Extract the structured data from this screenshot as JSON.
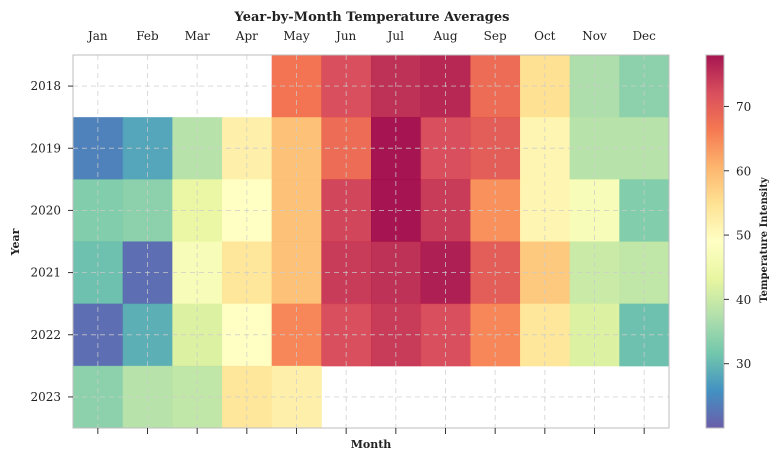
{
  "chart_data": {
    "type": "heatmap",
    "title": "Year-by-Month Temperature Averages",
    "xlabel": "Month",
    "ylabel": "Year",
    "colorbar_label": "Temperature Intensity",
    "colormap": "Spectral_r",
    "colorbar_range": [
      20,
      78
    ],
    "colorbar_ticks": [
      30,
      40,
      50,
      60,
      70
    ],
    "grid": true,
    "x_tick_position": "top",
    "columns": [
      "Jan",
      "Feb",
      "Mar",
      "Apr",
      "May",
      "Jun",
      "Jul",
      "Aug",
      "Sep",
      "Oct",
      "Nov",
      "Dec"
    ],
    "rows": [
      "2018",
      "2019",
      "2020",
      "2021",
      "2022",
      "2023"
    ],
    "values": [
      [
        null,
        null,
        null,
        null,
        67,
        72,
        75,
        76,
        68,
        55,
        37,
        34
      ],
      [
        24,
        28,
        38,
        52,
        59,
        68,
        78,
        72,
        70,
        51,
        38,
        38
      ],
      [
        33,
        34,
        44,
        49,
        59,
        73,
        78,
        74,
        64,
        51,
        47,
        33
      ],
      [
        31,
        22,
        47,
        54,
        59,
        74,
        75,
        77,
        70,
        58,
        40,
        39
      ],
      [
        22,
        29,
        42,
        49,
        65,
        72,
        74,
        72,
        65,
        54,
        42,
        31
      ],
      [
        34,
        38,
        39,
        54,
        52,
        null,
        null,
        null,
        null,
        null,
        null,
        null
      ]
    ]
  }
}
